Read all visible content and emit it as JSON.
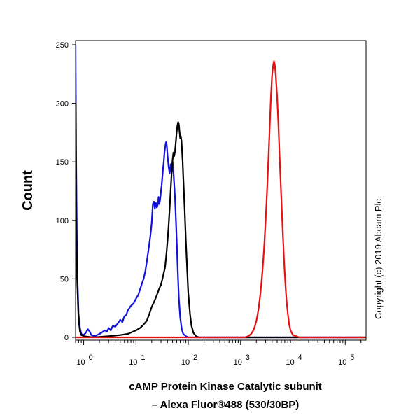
{
  "chart_data": {
    "type": "line",
    "title": "",
    "xlabel_line1": "cAMP Protein Kinase Catalytic subunit",
    "xlabel_line2": "– Alexa Fluor®488 (530/30BP)",
    "ylabel": "Count",
    "copyright": "Copyright (c) 2019 Abcam Plc",
    "x_scale": "log",
    "xlim": [
      0.7,
      250000
    ],
    "ylim": [
      0,
      250
    ],
    "y_ticks": [
      0,
      50,
      100,
      150,
      200,
      250
    ],
    "x_ticks": [
      {
        "value": 1,
        "base": "10",
        "exp": "0"
      },
      {
        "value": 10,
        "base": "10",
        "exp": "1"
      },
      {
        "value": 100,
        "base": "10",
        "exp": "2"
      },
      {
        "value": 1000,
        "base": "10",
        "exp": "3"
      },
      {
        "value": 10000,
        "base": "10",
        "exp": "4"
      },
      {
        "value": 100000,
        "base": "10",
        "exp": "5"
      }
    ],
    "grid": false,
    "legend": "none",
    "series": [
      {
        "color": "#1010e0",
        "points": [
          [
            0.7,
            250
          ],
          [
            0.72,
            150
          ],
          [
            0.75,
            60
          ],
          [
            0.8,
            20
          ],
          [
            0.85,
            8
          ],
          [
            0.9,
            3
          ],
          [
            1.0,
            2
          ],
          [
            1.1,
            4
          ],
          [
            1.2,
            7
          ],
          [
            1.3,
            5
          ],
          [
            1.4,
            2
          ],
          [
            1.6,
            1
          ],
          [
            1.8,
            2
          ],
          [
            2.0,
            3
          ],
          [
            2.2,
            4
          ],
          [
            2.5,
            6
          ],
          [
            2.8,
            5
          ],
          [
            3.0,
            8
          ],
          [
            3.3,
            6
          ],
          [
            3.6,
            10
          ],
          [
            4.0,
            9
          ],
          [
            4.5,
            12
          ],
          [
            5.0,
            15
          ],
          [
            5.5,
            13
          ],
          [
            6.0,
            18
          ],
          [
            6.5,
            19
          ],
          [
            7.0,
            23
          ],
          [
            8.0,
            27
          ],
          [
            9.0,
            29
          ],
          [
            10.0,
            33
          ],
          [
            11.0,
            36
          ],
          [
            12.0,
            41
          ],
          [
            13.0,
            46
          ],
          [
            14.0,
            50
          ],
          [
            15.0,
            56
          ],
          [
            16.0,
            64
          ],
          [
            17.0,
            72
          ],
          [
            18.0,
            80
          ],
          [
            19.0,
            88
          ],
          [
            20.0,
            98
          ],
          [
            21.0,
            114
          ],
          [
            22.0,
            116
          ],
          [
            23.0,
            110
          ],
          [
            24.0,
            115
          ],
          [
            25.0,
            111
          ],
          [
            26.0,
            113
          ],
          [
            27.0,
            120
          ],
          [
            28.0,
            114
          ],
          [
            29.0,
            118
          ],
          [
            30.0,
            125
          ],
          [
            31.0,
            130
          ],
          [
            32.0,
            138
          ],
          [
            33.0,
            145
          ],
          [
            34.0,
            150
          ],
          [
            35.0,
            158
          ],
          [
            36.0,
            162
          ],
          [
            37.0,
            166
          ],
          [
            38.0,
            167
          ],
          [
            39.0,
            163
          ],
          [
            40.0,
            156
          ],
          [
            42.0,
            146
          ],
          [
            44.0,
            140
          ],
          [
            46.0,
            148
          ],
          [
            48.0,
            145
          ],
          [
            50.0,
            150
          ],
          [
            52.0,
            142
          ],
          [
            54.0,
            130
          ],
          [
            56.0,
            118
          ],
          [
            58.0,
            100
          ],
          [
            60.0,
            82
          ],
          [
            63.0,
            55
          ],
          [
            66.0,
            33
          ],
          [
            70.0,
            17
          ],
          [
            75.0,
            7
          ],
          [
            80.0,
            3
          ],
          [
            90.0,
            1
          ],
          [
            100.0,
            0
          ],
          [
            1000,
            0
          ],
          [
            10000,
            0
          ],
          [
            250000,
            0
          ]
        ]
      },
      {
        "color": "#000000",
        "points": [
          [
            0.7,
            200
          ],
          [
            0.72,
            110
          ],
          [
            0.75,
            50
          ],
          [
            0.8,
            15
          ],
          [
            0.85,
            5
          ],
          [
            0.9,
            2
          ],
          [
            1.0,
            1
          ],
          [
            1.5,
            0
          ],
          [
            3.0,
            1
          ],
          [
            5.0,
            2
          ],
          [
            7.0,
            3
          ],
          [
            10.0,
            6
          ],
          [
            12.0,
            8
          ],
          [
            14.0,
            11
          ],
          [
            16.0,
            14
          ],
          [
            18.0,
            20
          ],
          [
            20.0,
            26
          ],
          [
            22.0,
            30
          ],
          [
            24.0,
            34
          ],
          [
            26.0,
            38
          ],
          [
            28.0,
            42
          ],
          [
            30.0,
            45
          ],
          [
            32.0,
            50
          ],
          [
            34.0,
            55
          ],
          [
            36.0,
            60
          ],
          [
            38.0,
            70
          ],
          [
            40.0,
            82
          ],
          [
            42.0,
            95
          ],
          [
            44.0,
            110
          ],
          [
            46.0,
            125
          ],
          [
            48.0,
            140
          ],
          [
            50.0,
            152
          ],
          [
            52.0,
            158
          ],
          [
            54.0,
            155
          ],
          [
            56.0,
            160
          ],
          [
            58.0,
            168
          ],
          [
            60.0,
            176
          ],
          [
            62.0,
            181
          ],
          [
            64.0,
            184
          ],
          [
            66.0,
            182
          ],
          [
            68.0,
            176
          ],
          [
            70.0,
            170
          ],
          [
            72.0,
            172
          ],
          [
            74.0,
            168
          ],
          [
            76.0,
            160
          ],
          [
            78.0,
            150
          ],
          [
            80.0,
            138
          ],
          [
            85.0,
            110
          ],
          [
            90.0,
            82
          ],
          [
            95.0,
            58
          ],
          [
            100.0,
            38
          ],
          [
            108.0,
            20
          ],
          [
            115.0,
            10
          ],
          [
            125.0,
            4
          ],
          [
            140.0,
            1
          ],
          [
            160.0,
            0
          ],
          [
            250000,
            0
          ]
        ]
      },
      {
        "color": "#e81010",
        "points": [
          [
            0.7,
            0
          ],
          [
            1000,
            0
          ],
          [
            1200,
            0
          ],
          [
            1400,
            1
          ],
          [
            1600,
            3
          ],
          [
            1800,
            7
          ],
          [
            2000,
            14
          ],
          [
            2200,
            24
          ],
          [
            2400,
            38
          ],
          [
            2600,
            55
          ],
          [
            2800,
            75
          ],
          [
            3000,
            98
          ],
          [
            3200,
            124
          ],
          [
            3400,
            152
          ],
          [
            3600,
            180
          ],
          [
            3800,
            206
          ],
          [
            4000,
            224
          ],
          [
            4200,
            233
          ],
          [
            4350,
            236
          ],
          [
            4500,
            233
          ],
          [
            4700,
            224
          ],
          [
            5000,
            205
          ],
          [
            5300,
            180
          ],
          [
            5600,
            152
          ],
          [
            6000,
            120
          ],
          [
            6400,
            90
          ],
          [
            6800,
            64
          ],
          [
            7200,
            44
          ],
          [
            7600,
            30
          ],
          [
            8000,
            20
          ],
          [
            8500,
            11
          ],
          [
            9000,
            6
          ],
          [
            10000,
            2
          ],
          [
            11500,
            1
          ],
          [
            13000,
            0
          ],
          [
            250000,
            0
          ]
        ]
      }
    ]
  }
}
